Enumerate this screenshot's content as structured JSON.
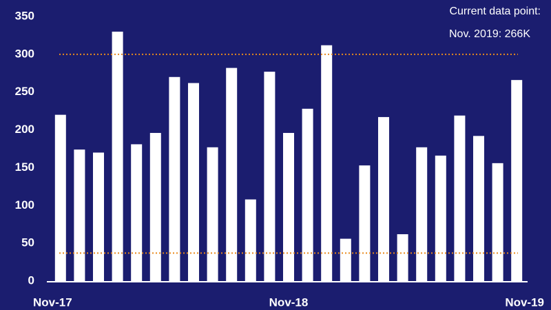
{
  "chart_data": {
    "type": "bar",
    "annotations": [
      "Current data point:",
      "Nov. 2019: 266K"
    ],
    "categories": [
      "Nov-17",
      null,
      null,
      null,
      null,
      null,
      null,
      null,
      null,
      null,
      null,
      null,
      "Nov-18",
      null,
      null,
      null,
      null,
      null,
      null,
      null,
      null,
      null,
      null,
      null,
      "Nov-19"
    ],
    "values": [
      220,
      174,
      170,
      330,
      181,
      196,
      270,
      262,
      177,
      282,
      108,
      277,
      196,
      228,
      312,
      56,
      153,
      217,
      62,
      177,
      166,
      219,
      192,
      156,
      266
    ],
    "color": "#ffffff",
    "ylim": [
      0,
      350
    ],
    "yticks": [
      0,
      50,
      100,
      150,
      200,
      250,
      300,
      350
    ],
    "reference_lines": [
      300,
      37
    ],
    "reference_color": "#e8891c"
  }
}
